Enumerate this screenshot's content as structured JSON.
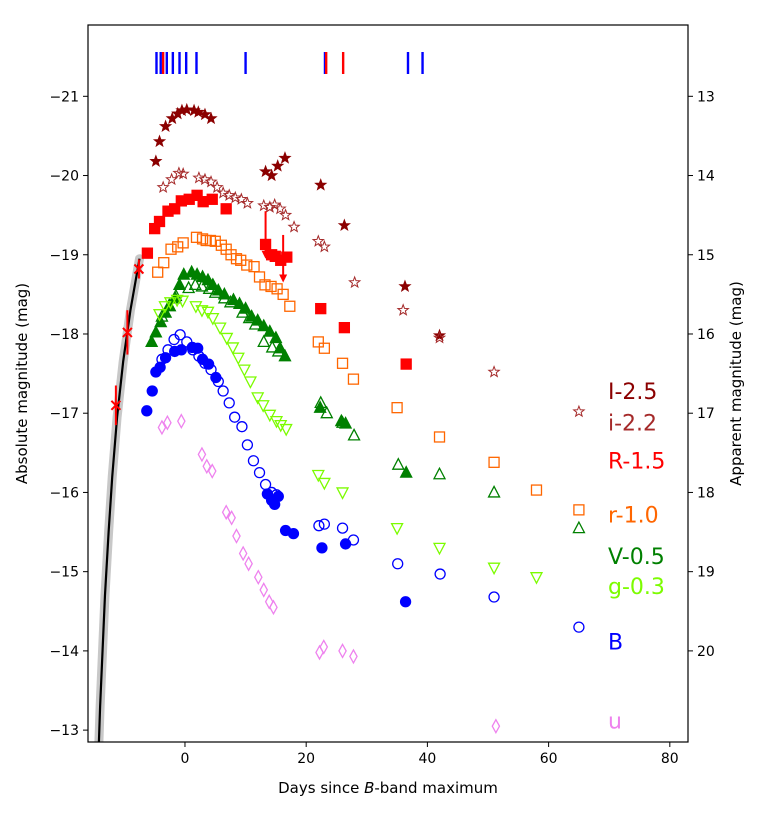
{
  "chart_data": {
    "type": "scatter",
    "xlabel_prefix": "Days since ",
    "xlabel_italic": "B",
    "xlabel_suffix": "-band maximum",
    "ylabel": "Absolute magnitude (mag)",
    "ylabel_right": "Apparent magnitude (mag)",
    "xlim": [
      -16,
      83
    ],
    "ylim": [
      -12.85,
      -21.9
    ],
    "xticks": [
      0,
      20,
      40,
      60,
      80
    ],
    "yticks": [
      -21,
      -20,
      -19,
      -18,
      -17,
      -16,
      -15,
      -14,
      -13
    ],
    "yticks_right": [
      13,
      14,
      15,
      16,
      17,
      18,
      19,
      20
    ],
    "apparent_offset": 34.0,
    "spectra_epochs": [
      {
        "day": -4.7,
        "color": "#0000ff"
      },
      {
        "day": -4.0,
        "color": "#0000ff"
      },
      {
        "day": -3.6,
        "color": "#ff0000"
      },
      {
        "day": -3.0,
        "color": "#0000ff"
      },
      {
        "day": -2.0,
        "color": "#0000ff"
      },
      {
        "day": -0.9,
        "color": "#0000ff"
      },
      {
        "day": 0.2,
        "color": "#0000ff"
      },
      {
        "day": 1.9,
        "color": "#0000ff"
      },
      {
        "day": 10.0,
        "color": "#0000ff"
      },
      {
        "day": 23.1,
        "color": "#0000ff"
      },
      {
        "day": 23.3,
        "color": "#ff0000"
      },
      {
        "day": 26.1,
        "color": "#ff0000"
      },
      {
        "day": 36.8,
        "color": "#0000ff"
      },
      {
        "day": 39.2,
        "color": "#0000ff"
      }
    ],
    "model_curve": {
      "name": "Early rise fit",
      "x": [
        -14.2,
        -14.0,
        -13.6,
        -13.2,
        -12.6,
        -12.0,
        -11.2,
        -10.2,
        -9.0,
        -7.5
      ],
      "y": [
        -12.85,
        -13.3,
        -14.0,
        -14.7,
        -15.5,
        -16.2,
        -16.95,
        -17.65,
        -18.3,
        -18.95
      ]
    },
    "early_points": {
      "name": "Early detections",
      "color": "#ff0000",
      "x": [
        -11.4,
        -9.5,
        -7.6
      ],
      "y": [
        -17.1,
        -18.02,
        -18.82
      ],
      "err": [
        0.25,
        0.28,
        0.12
      ]
    },
    "series": [
      {
        "name": "I-2.5",
        "marker": "star",
        "filled": true,
        "color": "#8b0000",
        "x": [
          -4.8,
          -4.2,
          -3.2,
          -2.1,
          -1.2,
          -0.5,
          0.3,
          1.5,
          2.2,
          3.3,
          4.3,
          13.3,
          14.3,
          15.3,
          16.5,
          22.4,
          26.3,
          36.3,
          42.0
        ],
        "y": [
          -20.18,
          -20.43,
          -20.62,
          -20.72,
          -20.78,
          -20.82,
          -20.83,
          -20.82,
          -20.8,
          -20.77,
          -20.72,
          -20.05,
          -20.0,
          -20.12,
          -20.22,
          -19.88,
          -19.37,
          -18.6,
          -17.98
        ]
      },
      {
        "name": "i-2.2",
        "marker": "star",
        "filled": false,
        "color": "#a52a2a",
        "x": [
          -3.6,
          -2.2,
          -1.0,
          -0.3,
          2.3,
          3.3,
          4.3,
          5.3,
          6.3,
          7.3,
          8.3,
          9.3,
          10.3,
          13.0,
          14.0,
          14.8,
          15.7,
          16.6,
          18.0,
          22.0,
          23.0,
          28.0,
          36.0,
          42.0,
          51.0,
          65.0
        ],
        "y": [
          -19.85,
          -19.95,
          -20.03,
          -20.02,
          -19.97,
          -19.95,
          -19.92,
          -19.85,
          -19.78,
          -19.75,
          -19.72,
          -19.7,
          -19.65,
          -19.62,
          -19.6,
          -19.63,
          -19.58,
          -19.5,
          -19.35,
          -19.17,
          -19.1,
          -18.65,
          -18.3,
          -17.95,
          -17.52,
          -17.02
        ]
      },
      {
        "name": "R-1.5",
        "marker": "square",
        "filled": true,
        "color": "#ff0000",
        "x": [
          -6.2,
          -5.0,
          -4.2,
          -2.8,
          -1.7,
          -0.6,
          0.7,
          2.0,
          3.0,
          4.5,
          6.8,
          13.3,
          14.3,
          14.9,
          15.8,
          16.8,
          22.4,
          26.3,
          36.5
        ],
        "y": [
          -19.02,
          -19.33,
          -19.42,
          -19.55,
          -19.58,
          -19.68,
          -19.7,
          -19.75,
          -19.67,
          -19.7,
          -19.58,
          -19.13,
          -19.0,
          -18.98,
          -18.93,
          -18.97,
          -18.32,
          -18.08,
          -17.62
        ]
      },
      {
        "name": "r-1.0",
        "marker": "square",
        "filled": false,
        "color": "#ff6600",
        "x": [
          -4.5,
          -3.5,
          -2.3,
          -1.2,
          -0.3,
          1.9,
          2.9,
          3.5,
          4.2,
          5.0,
          6.0,
          6.8,
          7.6,
          8.5,
          9.2,
          10.2,
          11.4,
          12.3,
          13.2,
          14.2,
          15.2,
          16.2,
          17.3,
          22.0,
          23.0,
          26.0,
          27.8,
          35.0,
          42.0,
          51.0,
          58.0,
          65.0
        ],
        "y": [
          -18.78,
          -18.9,
          -19.07,
          -19.1,
          -19.15,
          -19.22,
          -19.2,
          -19.18,
          -19.18,
          -19.17,
          -19.12,
          -19.07,
          -19.0,
          -18.95,
          -18.93,
          -18.87,
          -18.85,
          -18.72,
          -18.62,
          -18.6,
          -18.57,
          -18.5,
          -18.35,
          -17.9,
          -17.82,
          -17.63,
          -17.43,
          -17.07,
          -16.7,
          -16.38,
          -16.03,
          -15.78
        ]
      },
      {
        "name": "V-0.5",
        "marker": "triangle-up",
        "filled": true,
        "color": "#008000",
        "x": [
          -5.5,
          -4.8,
          -4.0,
          -3.2,
          -2.5,
          -1.6,
          -0.9,
          -0.2,
          1.1,
          2.0,
          2.9,
          3.8,
          4.6,
          5.5,
          6.5,
          8.0,
          9.0,
          10.0,
          11.0,
          12.0,
          13.0,
          14.0,
          15.0,
          15.7,
          16.5,
          22.3,
          25.8,
          26.5,
          36.5
        ],
        "y": [
          -17.9,
          -18.02,
          -18.15,
          -18.27,
          -18.35,
          -18.45,
          -18.62,
          -18.75,
          -18.78,
          -18.75,
          -18.72,
          -18.68,
          -18.62,
          -18.55,
          -18.5,
          -18.43,
          -18.38,
          -18.32,
          -18.22,
          -18.17,
          -18.1,
          -18.03,
          -17.95,
          -17.82,
          -17.72,
          -17.07,
          -16.9,
          -16.87,
          -16.25
        ]
      },
      {
        "name": "V-0.5 (open)",
        "marker": "triangle-up",
        "filled": false,
        "color": "#008000",
        "x": [
          -3.8,
          -2.6,
          -1.5,
          0.6,
          1.7,
          2.8,
          4.0,
          5.0,
          6.5,
          7.5,
          9.5,
          10.6,
          11.6,
          13.0,
          14.4,
          15.4,
          22.4,
          23.4,
          26.0,
          27.9,
          35.2,
          42.0,
          51.0,
          65.0
        ],
        "y": [
          -18.22,
          -18.36,
          -18.48,
          -18.58,
          -18.62,
          -18.6,
          -18.57,
          -18.52,
          -18.45,
          -18.4,
          -18.27,
          -18.2,
          -18.12,
          -17.9,
          -17.83,
          -17.78,
          -17.13,
          -17.0,
          -16.88,
          -16.72,
          -16.35,
          -16.23,
          -16.0,
          -15.55
        ]
      },
      {
        "name": "g-0.3",
        "marker": "triangle-down",
        "filled": false,
        "color": "#7cfc00",
        "x": [
          -4.2,
          -3.3,
          -2.4,
          -1.3,
          -0.4,
          1.8,
          2.8,
          3.8,
          4.6,
          5.8,
          6.9,
          7.9,
          8.8,
          9.8,
          10.8,
          12.0,
          12.9,
          14.0,
          15.1,
          15.8,
          16.7,
          22.0,
          23.0,
          26.0,
          35.0,
          42.0,
          51.0,
          58.0
        ],
        "y": [
          -18.25,
          -18.35,
          -18.4,
          -18.43,
          -18.42,
          -18.35,
          -18.3,
          -18.28,
          -18.2,
          -18.08,
          -17.95,
          -17.83,
          -17.7,
          -17.55,
          -17.4,
          -17.2,
          -17.1,
          -16.98,
          -16.9,
          -16.85,
          -16.8,
          -16.22,
          -16.12,
          -16.0,
          -15.55,
          -15.3,
          -15.05,
          -14.93
        ]
      },
      {
        "name": "B",
        "marker": "circle",
        "filled": true,
        "color": "#0000ff",
        "x": [
          -6.3,
          -5.4,
          -4.8,
          -4.1,
          -3.2,
          -1.7,
          -0.6,
          1.2,
          2.1,
          2.9,
          3.9,
          5.1,
          13.6,
          14.3,
          14.8,
          15.4,
          16.6,
          17.9,
          22.6,
          26.5,
          36.4
        ],
        "y": [
          -17.03,
          -17.28,
          -17.52,
          -17.58,
          -17.7,
          -17.78,
          -17.8,
          -17.83,
          -17.82,
          -17.68,
          -17.62,
          -17.45,
          -15.98,
          -15.9,
          -15.85,
          -15.95,
          -15.52,
          -15.48,
          -15.3,
          -15.35,
          -14.62
        ]
      },
      {
        "name": "B (open)",
        "marker": "circle",
        "filled": false,
        "color": "#0000ff",
        "x": [
          -3.8,
          -2.8,
          -1.8,
          -0.8,
          0.3,
          1.3,
          2.3,
          3.3,
          4.3,
          5.5,
          6.3,
          7.3,
          8.2,
          9.4,
          10.3,
          11.3,
          12.3,
          13.3,
          14.3,
          15.1,
          22.1,
          23.0,
          26.0,
          27.8,
          35.1,
          42.1,
          51.0,
          65.0
        ],
        "y": [
          -17.68,
          -17.8,
          -17.93,
          -17.99,
          -17.9,
          -17.8,
          -17.72,
          -17.63,
          -17.55,
          -17.4,
          -17.28,
          -17.13,
          -16.95,
          -16.83,
          -16.6,
          -16.4,
          -16.25,
          -16.1,
          -16.0,
          -15.97,
          -15.58,
          -15.6,
          -15.55,
          -15.4,
          -15.1,
          -14.97,
          -14.68,
          -14.3
        ]
      },
      {
        "name": "u",
        "marker": "diamond",
        "filled": false,
        "color": "#ee82ee",
        "x": [
          -3.8,
          -2.9,
          -0.6,
          2.8,
          3.6,
          4.5,
          6.8,
          7.7,
          8.5,
          9.6,
          10.5,
          12.1,
          13.0,
          13.9,
          14.6,
          22.2,
          22.9,
          26.0,
          27.8,
          51.3
        ],
        "y": [
          -16.82,
          -16.88,
          -16.9,
          -16.48,
          -16.33,
          -16.27,
          -15.75,
          -15.68,
          -15.45,
          -15.23,
          -15.1,
          -14.93,
          -14.77,
          -14.62,
          -14.55,
          -13.98,
          -14.05,
          -14.0,
          -13.93,
          -13.05
        ]
      }
    ],
    "arrows": [
      {
        "x": 13.3,
        "y_from": -19.55,
        "y_to": -19.0,
        "color": "#ff0000"
      },
      {
        "x": 16.2,
        "y_from": -19.25,
        "y_to": -18.7,
        "color": "#ff0000"
      }
    ],
    "legend_labels": [
      {
        "text": "I-2.5",
        "color": "#8b0000",
        "y": -17.28
      },
      {
        "text": "i-2.2",
        "color": "#a52a2a",
        "y": -16.88
      },
      {
        "text": "R-1.5",
        "color": "#ff0000",
        "y": -16.4
      },
      {
        "text": "r-1.0",
        "color": "#ff6600",
        "y": -15.72
      },
      {
        "text": "V-0.5",
        "color": "#008000",
        "y": -15.2
      },
      {
        "text": "g-0.3",
        "color": "#7cfc00",
        "y": -14.82
      },
      {
        "text": "B",
        "color": "#0000ff",
        "y": -14.12
      },
      {
        "text": "u",
        "color": "#ee82ee",
        "y": -13.12
      }
    ]
  }
}
